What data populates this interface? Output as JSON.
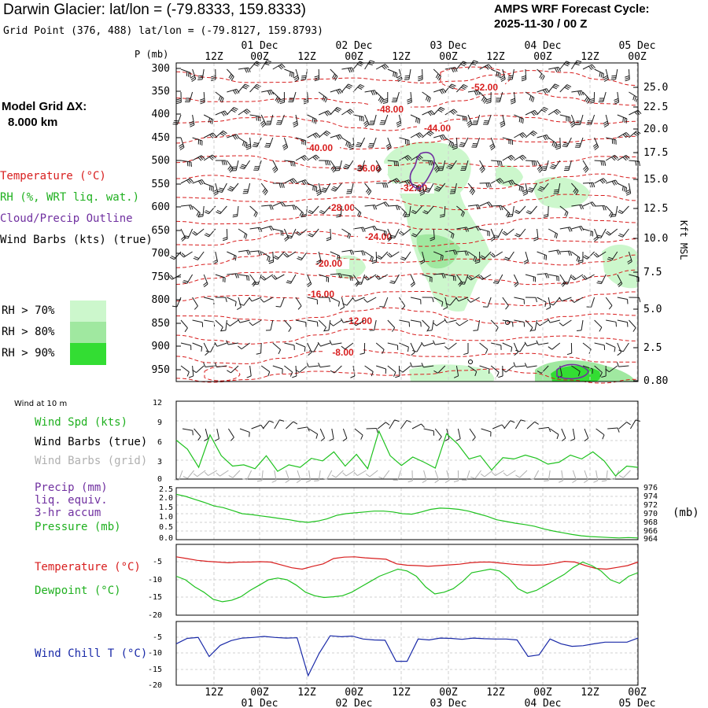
{
  "header": {
    "title": "Darwin Glacier:  lat/lon = (-79.8333, 159.8333)",
    "subtitle": "Grid Point (376, 488) lat/lon = (-79.8127, 159.8793)",
    "cycle_line1": "AMPS WRF Forecast Cycle:",
    "cycle_line2": "2025-11-30 / 00  Z"
  },
  "model_grid": {
    "line1": "Model Grid ΔX:",
    "line2": "8.000 km"
  },
  "upper_legend": {
    "temperature": "Temperature (°C)",
    "rh": "RH (%, WRT liq. wat.)",
    "cloud": "Cloud/Precip Outline",
    "wind": "Wind Barbs (kts) (true)"
  },
  "rh_legend": [
    "RH > 70%",
    "RH > 80%",
    "RH > 90%"
  ],
  "p_axis_label": "P (mb)",
  "right_axis_label": "Kft MSL",
  "surface_wind_label": "Wind at 10 m",
  "panel_legends": {
    "wind": [
      "Wind Spd (kts)",
      "Wind Barbs (true)",
      "Wind Barbs (grid)"
    ],
    "precip": [
      "Precip (mm)",
      "liq. equiv.",
      "3-hr accum",
      "Pressure (mb)"
    ],
    "pressure_unit": "(mb)",
    "temp": [
      "Temperature (°C)",
      "Dewpoint (°C)"
    ],
    "chill": [
      "Wind Chill T (°C)"
    ]
  },
  "colors": {
    "temperature": "#d81e1e",
    "rh70": "#ccf7cc",
    "rh80": "#a0e8a0",
    "rh90": "#33dd33",
    "cloud": "#7030a0",
    "wind": "#1a1a1a",
    "grid_wind": "#b0b0b0",
    "green_series": "#1fc21f",
    "chill": "#1a2aa8"
  },
  "chart_data": [
    {
      "type": "heatmap",
      "name": "upper-air cross-section",
      "x_ticks_top": [
        "12Z",
        "00Z",
        "12Z",
        "00Z",
        "12Z",
        "00Z",
        "12Z",
        "00Z",
        "12Z",
        "00Z"
      ],
      "date_labels": [
        "01 Dec",
        "02 Dec",
        "03 Dec",
        "04 Dec",
        "05 Dec"
      ],
      "y_left_ticks": [
        "300",
        "350",
        "400",
        "450",
        "500",
        "550",
        "600",
        "650",
        "700",
        "750",
        "800",
        "850",
        "900",
        "950"
      ],
      "y_right_ticks": [
        "25.0",
        "22.5",
        "20.0",
        "17.5",
        "15.0",
        "12.5",
        "10.0",
        "7.5",
        "5.0",
        "2.5",
        "0.80"
      ],
      "temperature_labels": [
        "-52.00",
        "-48.00",
        "-44.00",
        "-40.00",
        "-36.00",
        "-32.00",
        "-28.00",
        "-24.00",
        "-20.00",
        "-16.00",
        "-12.00",
        "-8.00"
      ]
    },
    {
      "type": "line",
      "name": "wind",
      "ylim": [
        0,
        12
      ],
      "y_ticks": [
        "12",
        "9",
        "6",
        "3",
        "0"
      ],
      "series": [
        {
          "name": "Wind Spd (kts)",
          "values": [
            6.0,
            4.6,
            1.8,
            6.8,
            3.6,
            2.0,
            2.2,
            1.6,
            3.6,
            1.2,
            2.2,
            1.8,
            3.2,
            2.8,
            4.2,
            2.0,
            3.8,
            1.6,
            7.4,
            3.6,
            2.1,
            3.4,
            2.6,
            1.7,
            7.0,
            5.4,
            3.1,
            3.6,
            1.4,
            3.3,
            3.1,
            3.7,
            3.2,
            2.3,
            2.6,
            3.7,
            3.1,
            4.2,
            2.8,
            0.5,
            2.0,
            1.8
          ]
        }
      ]
    },
    {
      "type": "line",
      "name": "precipitation and pressure",
      "ylim_left": [
        0,
        2.5
      ],
      "y_left_ticks": [
        "2.5",
        "2.0",
        "1.5",
        "1.0",
        "0.5",
        "0.0"
      ],
      "ylim_right": [
        964,
        976
      ],
      "y_right_ticks": [
        "976",
        "974",
        "972",
        "970",
        "968",
        "966",
        "964"
      ],
      "series": [
        {
          "name": "Pressure (mb)",
          "values": [
            974.5,
            974.0,
            973.3,
            972.6,
            971.8,
            971.4,
            970.7,
            970.0,
            969.8,
            969.5,
            969.2,
            968.9,
            968.6,
            968.2,
            968.0,
            968.3,
            968.8,
            969.6,
            970.0,
            970.2,
            970.4,
            970.6,
            970.6,
            970.4,
            970.0,
            969.9,
            970.4,
            971.0,
            971.3,
            971.2,
            971.0,
            970.6,
            970.0,
            969.4,
            968.6,
            968.2,
            967.8,
            967.5,
            967.1,
            966.5,
            966.0,
            965.6,
            965.2,
            964.9,
            964.7,
            964.6,
            964.5,
            964.4,
            964.5,
            964.4
          ]
        }
      ]
    },
    {
      "type": "line",
      "name": "temperature",
      "ylim": [
        -20,
        0
      ],
      "y_ticks": [
        "-5",
        "-10",
        "-15",
        "-20"
      ],
      "series": [
        {
          "name": "Temperature (°C)",
          "values": [
            -3.5,
            -4.0,
            -4.5,
            -4.8,
            -5.0,
            -5.2,
            -5.0,
            -5.0,
            -4.9,
            -5.0,
            -5.8,
            -6.6,
            -7.0,
            -6.2,
            -5.5,
            -4.0,
            -3.6,
            -3.5,
            -3.8,
            -4.0,
            -4.2,
            -5.5,
            -5.9,
            -6.0,
            -6.2,
            -6.0,
            -5.8,
            -5.6,
            -5.2,
            -5.0,
            -5.0,
            -5.3,
            -5.6,
            -5.8,
            -5.9,
            -5.8,
            -5.4,
            -4.8,
            -5.0,
            -6.0,
            -6.8,
            -7.0,
            -6.5,
            -6.0,
            -5.0
          ]
        },
        {
          "name": "Dewpoint (°C)",
          "values": [
            -9.0,
            -10.0,
            -12.0,
            -13.5,
            -15.5,
            -16.2,
            -15.8,
            -14.8,
            -13.0,
            -11.5,
            -10.0,
            -9.5,
            -10.0,
            -11.5,
            -13.5,
            -14.5,
            -15.0,
            -14.8,
            -14.5,
            -13.5,
            -12.0,
            -10.5,
            -9.0,
            -8.0,
            -7.0,
            -7.5,
            -9.0,
            -12.0,
            -14.0,
            -13.5,
            -12.5,
            -10.5,
            -8.0,
            -7.5,
            -7.0,
            -7.5,
            -9.5,
            -12.5,
            -13.8,
            -13.0,
            -11.5,
            -10.0,
            -8.5,
            -6.5,
            -5.0,
            -6.0,
            -7.5,
            -10.0,
            -11.0,
            -9.0,
            -8.0
          ]
        }
      ]
    },
    {
      "type": "line",
      "name": "wind chill",
      "ylim": [
        -20,
        0
      ],
      "y_ticks": [
        "-5",
        "-10",
        "-15",
        "-20"
      ],
      "series": [
        {
          "name": "Wind Chill T (°C)",
          "values": [
            -7.0,
            -5.3,
            -5.0,
            -11.0,
            -7.5,
            -6.0,
            -5.2,
            -5.0,
            -4.7,
            -5.0,
            -5.2,
            -5.1,
            -17.0,
            -10.0,
            -4.5,
            -4.8,
            -4.6,
            -5.5,
            -5.8,
            -5.9,
            -12.5,
            -12.5,
            -5.5,
            -5.8,
            -5.2,
            -5.3,
            -5.6,
            -5.2,
            -5.4,
            -5.5,
            -5.5,
            -5.8,
            -11.0,
            -10.5,
            -5.5,
            -7.0,
            -7.8,
            -7.6,
            -7.0,
            -6.5,
            -6.5,
            -6.5,
            -5.2
          ]
        }
      ]
    }
  ],
  "bottom_axis": {
    "ticks": [
      "12Z",
      "00Z",
      "12Z",
      "00Z",
      "12Z",
      "00Z",
      "12Z",
      "00Z",
      "12Z",
      "00Z"
    ],
    "dates": [
      "01 Dec",
      "02 Dec",
      "03 Dec",
      "04 Dec",
      "05 Dec"
    ]
  }
}
